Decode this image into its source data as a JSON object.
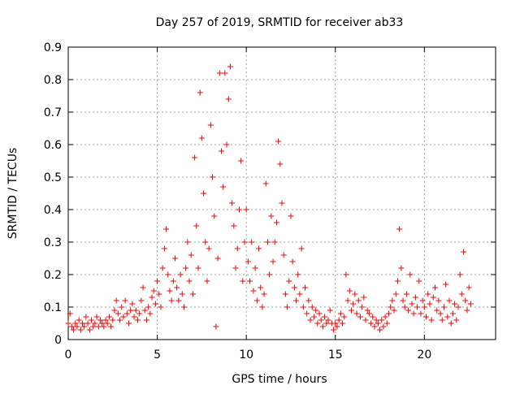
{
  "chart_data": {
    "type": "scatter",
    "title": "Day 257 of 2019, SRMTID for receiver ab33",
    "xlabel": "GPS time / hours",
    "ylabel": "SRMTID / TECUs",
    "xlim": [
      0,
      24
    ],
    "ylim": [
      0,
      0.9
    ],
    "xticks": [
      0,
      5,
      10,
      15,
      20
    ],
    "yticks": [
      0,
      0.1,
      0.2,
      0.3,
      0.4,
      0.5,
      0.6,
      0.7,
      0.8,
      0.9
    ],
    "xtick_labels": [
      "0",
      "5",
      "10",
      "15",
      "20"
    ],
    "ytick_labels": [
      "0",
      "0.1",
      "0.2",
      "0.3",
      "0.4",
      "0.5",
      "0.6",
      "0.7",
      "0.8",
      "0.9"
    ],
    "grid": true,
    "marker": "+",
    "color": "#ff0000",
    "series": [
      {
        "name": "SRMTID",
        "points": [
          [
            0.0,
            0.05
          ],
          [
            0.1,
            0.08
          ],
          [
            0.2,
            0.04
          ],
          [
            0.3,
            0.03
          ],
          [
            0.4,
            0.05
          ],
          [
            0.5,
            0.04
          ],
          [
            0.6,
            0.06
          ],
          [
            0.7,
            0.03
          ],
          [
            0.8,
            0.05
          ],
          [
            0.9,
            0.04
          ],
          [
            1.0,
            0.07
          ],
          [
            1.1,
            0.05
          ],
          [
            1.2,
            0.03
          ],
          [
            1.3,
            0.06
          ],
          [
            1.4,
            0.04
          ],
          [
            1.5,
            0.05
          ],
          [
            1.6,
            0.07
          ],
          [
            1.7,
            0.04
          ],
          [
            1.8,
            0.06
          ],
          [
            1.9,
            0.05
          ],
          [
            2.0,
            0.04
          ],
          [
            2.1,
            0.06
          ],
          [
            2.2,
            0.05
          ],
          [
            2.3,
            0.07
          ],
          [
            2.4,
            0.04
          ],
          [
            2.5,
            0.06
          ],
          [
            2.6,
            0.09
          ],
          [
            2.7,
            0.12
          ],
          [
            2.8,
            0.08
          ],
          [
            2.9,
            0.06
          ],
          [
            3.0,
            0.1
          ],
          [
            3.1,
            0.07
          ],
          [
            3.2,
            0.12
          ],
          [
            3.3,
            0.08
          ],
          [
            3.4,
            0.05
          ],
          [
            3.5,
            0.09
          ],
          [
            3.6,
            0.11
          ],
          [
            3.7,
            0.07
          ],
          [
            3.8,
            0.09
          ],
          [
            3.9,
            0.06
          ],
          [
            4.0,
            0.08
          ],
          [
            4.1,
            0.12
          ],
          [
            4.2,
            0.16
          ],
          [
            4.3,
            0.09
          ],
          [
            4.4,
            0.06
          ],
          [
            4.5,
            0.1
          ],
          [
            4.6,
            0.08
          ],
          [
            4.7,
            0.13
          ],
          [
            4.8,
            0.15
          ],
          [
            4.9,
            0.11
          ],
          [
            5.0,
            0.18
          ],
          [
            5.1,
            0.14
          ],
          [
            5.2,
            0.1
          ],
          [
            5.3,
            0.22
          ],
          [
            5.4,
            0.28
          ],
          [
            5.5,
            0.34
          ],
          [
            5.6,
            0.2
          ],
          [
            5.7,
            0.15
          ],
          [
            5.8,
            0.12
          ],
          [
            5.9,
            0.18
          ],
          [
            6.0,
            0.25
          ],
          [
            6.1,
            0.16
          ],
          [
            6.2,
            0.12
          ],
          [
            6.3,
            0.2
          ],
          [
            6.4,
            0.14
          ],
          [
            6.5,
            0.1
          ],
          [
            6.6,
            0.22
          ],
          [
            6.7,
            0.3
          ],
          [
            6.8,
            0.18
          ],
          [
            6.9,
            0.26
          ],
          [
            7.0,
            0.14
          ],
          [
            7.1,
            0.56
          ],
          [
            7.2,
            0.35
          ],
          [
            7.3,
            0.22
          ],
          [
            7.4,
            0.76
          ],
          [
            7.5,
            0.62
          ],
          [
            7.6,
            0.45
          ],
          [
            7.7,
            0.3
          ],
          [
            7.8,
            0.18
          ],
          [
            7.9,
            0.28
          ],
          [
            8.0,
            0.66
          ],
          [
            8.1,
            0.5
          ],
          [
            8.2,
            0.38
          ],
          [
            8.3,
            0.04
          ],
          [
            8.4,
            0.25
          ],
          [
            8.5,
            0.82
          ],
          [
            8.6,
            0.58
          ],
          [
            8.7,
            0.47
          ],
          [
            8.8,
            0.82
          ],
          [
            8.9,
            0.6
          ],
          [
            9.0,
            0.74
          ],
          [
            9.1,
            0.84
          ],
          [
            9.2,
            0.42
          ],
          [
            9.3,
            0.35
          ],
          [
            9.4,
            0.22
          ],
          [
            9.5,
            0.28
          ],
          [
            9.6,
            0.4
          ],
          [
            9.7,
            0.55
          ],
          [
            9.8,
            0.18
          ],
          [
            9.9,
            0.3
          ],
          [
            10.0,
            0.4
          ],
          [
            10.1,
            0.24
          ],
          [
            10.2,
            0.18
          ],
          [
            10.3,
            0.3
          ],
          [
            10.4,
            0.15
          ],
          [
            10.5,
            0.22
          ],
          [
            10.6,
            0.12
          ],
          [
            10.7,
            0.28
          ],
          [
            10.8,
            0.16
          ],
          [
            10.9,
            0.1
          ],
          [
            11.0,
            0.14
          ],
          [
            11.1,
            0.48
          ],
          [
            11.2,
            0.3
          ],
          [
            11.3,
            0.2
          ],
          [
            11.4,
            0.38
          ],
          [
            11.5,
            0.24
          ],
          [
            11.6,
            0.3
          ],
          [
            11.7,
            0.36
          ],
          [
            11.8,
            0.61
          ],
          [
            11.9,
            0.54
          ],
          [
            12.0,
            0.42
          ],
          [
            12.1,
            0.26
          ],
          [
            12.2,
            0.14
          ],
          [
            12.3,
            0.1
          ],
          [
            12.4,
            0.18
          ],
          [
            12.5,
            0.38
          ],
          [
            12.6,
            0.24
          ],
          [
            12.7,
            0.16
          ],
          [
            12.8,
            0.12
          ],
          [
            12.9,
            0.2
          ],
          [
            13.0,
            0.14
          ],
          [
            13.1,
            0.28
          ],
          [
            13.2,
            0.1
          ],
          [
            13.3,
            0.16
          ],
          [
            13.4,
            0.08
          ],
          [
            13.5,
            0.12
          ],
          [
            13.6,
            0.06
          ],
          [
            13.7,
            0.1
          ],
          [
            13.8,
            0.07
          ],
          [
            13.9,
            0.09
          ],
          [
            14.0,
            0.05
          ],
          [
            14.1,
            0.08
          ],
          [
            14.2,
            0.06
          ],
          [
            14.3,
            0.04
          ],
          [
            14.4,
            0.07
          ],
          [
            14.5,
            0.05
          ],
          [
            14.6,
            0.06
          ],
          [
            14.7,
            0.09
          ],
          [
            14.8,
            0.05
          ],
          [
            14.9,
            0.03
          ],
          [
            15.0,
            0.05
          ],
          [
            15.1,
            0.04
          ],
          [
            15.2,
            0.06
          ],
          [
            15.3,
            0.08
          ],
          [
            15.4,
            0.05
          ],
          [
            15.5,
            0.07
          ],
          [
            15.6,
            0.2
          ],
          [
            15.7,
            0.12
          ],
          [
            15.8,
            0.15
          ],
          [
            15.9,
            0.09
          ],
          [
            16.0,
            0.11
          ],
          [
            16.1,
            0.14
          ],
          [
            16.2,
            0.08
          ],
          [
            16.3,
            0.12
          ],
          [
            16.4,
            0.07
          ],
          [
            16.5,
            0.1
          ],
          [
            16.6,
            0.13
          ],
          [
            16.7,
            0.06
          ],
          [
            16.8,
            0.09
          ],
          [
            16.9,
            0.08
          ],
          [
            17.0,
            0.05
          ],
          [
            17.1,
            0.07
          ],
          [
            17.2,
            0.04
          ],
          [
            17.3,
            0.06
          ],
          [
            17.4,
            0.05
          ],
          [
            17.5,
            0.03
          ],
          [
            17.6,
            0.06
          ],
          [
            17.7,
            0.04
          ],
          [
            17.8,
            0.07
          ],
          [
            17.9,
            0.05
          ],
          [
            18.0,
            0.08
          ],
          [
            18.1,
            0.1
          ],
          [
            18.2,
            0.12
          ],
          [
            18.3,
            0.09
          ],
          [
            18.4,
            0.14
          ],
          [
            18.5,
            0.18
          ],
          [
            18.6,
            0.34
          ],
          [
            18.7,
            0.22
          ],
          [
            18.8,
            0.12
          ],
          [
            18.9,
            0.1
          ],
          [
            19.0,
            0.14
          ],
          [
            19.1,
            0.09
          ],
          [
            19.2,
            0.2
          ],
          [
            19.3,
            0.11
          ],
          [
            19.4,
            0.08
          ],
          [
            19.5,
            0.13
          ],
          [
            19.6,
            0.1
          ],
          [
            19.7,
            0.18
          ],
          [
            19.8,
            0.08
          ],
          [
            19.9,
            0.12
          ],
          [
            20.0,
            0.1
          ],
          [
            20.1,
            0.07
          ],
          [
            20.2,
            0.14
          ],
          [
            20.3,
            0.11
          ],
          [
            20.4,
            0.06
          ],
          [
            20.5,
            0.13
          ],
          [
            20.6,
            0.16
          ],
          [
            20.7,
            0.09
          ],
          [
            20.8,
            0.12
          ],
          [
            20.9,
            0.08
          ],
          [
            21.0,
            0.06
          ],
          [
            21.1,
            0.1
          ],
          [
            21.2,
            0.17
          ],
          [
            21.3,
            0.07
          ],
          [
            21.4,
            0.12
          ],
          [
            21.5,
            0.05
          ],
          [
            21.6,
            0.08
          ],
          [
            21.7,
            0.11
          ],
          [
            21.8,
            0.06
          ],
          [
            21.9,
            0.1
          ],
          [
            22.0,
            0.2
          ],
          [
            22.1,
            0.14
          ],
          [
            22.2,
            0.27
          ],
          [
            22.3,
            0.12
          ],
          [
            22.4,
            0.09
          ],
          [
            22.5,
            0.16
          ],
          [
            22.6,
            0.11
          ]
        ]
      }
    ]
  }
}
